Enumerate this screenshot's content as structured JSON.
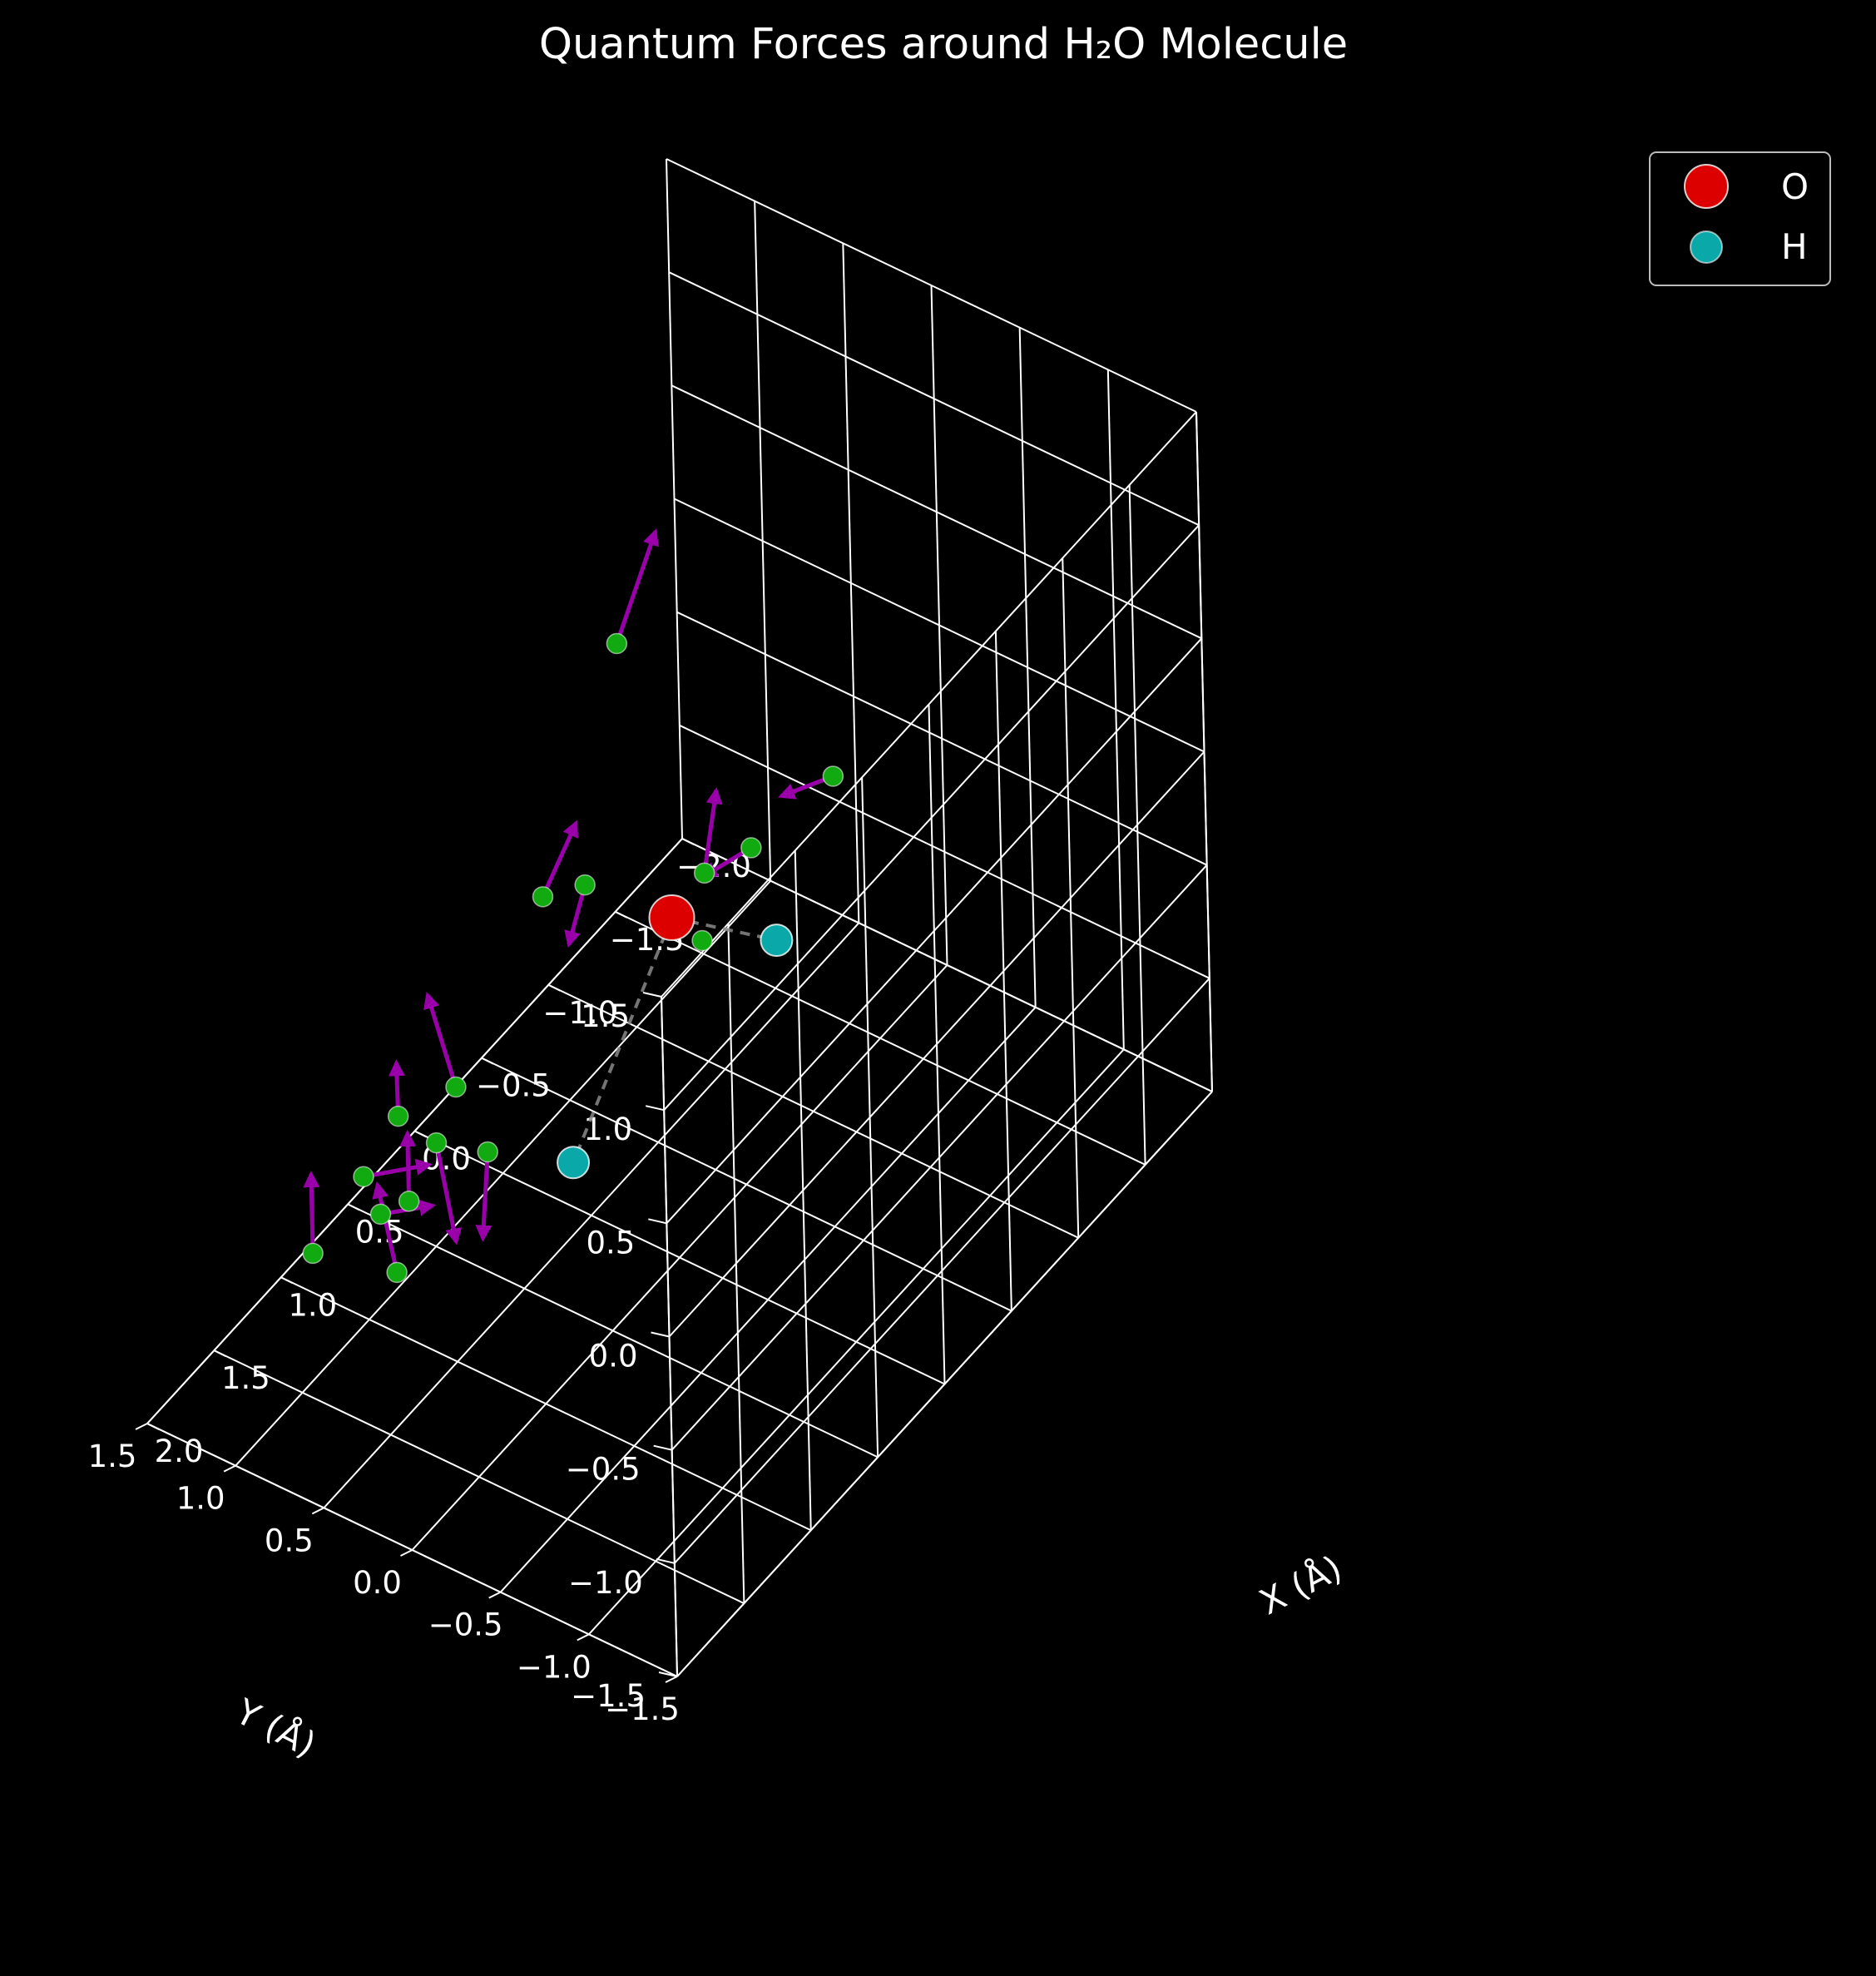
{
  "chart_data": {
    "type": "scatter",
    "title": "Quantum Forces around H₂O Molecule",
    "xlabel": "X (Å)",
    "ylabel": "Y (Å)",
    "zlabel": "",
    "xlim": [
      -2.0,
      2.0
    ],
    "ylim": [
      -1.5,
      1.5
    ],
    "zlim": [
      -1.5,
      1.5
    ],
    "x_ticks": [
      "−2.0",
      "−1.5",
      "−1.0",
      "−0.5",
      "0.0",
      "0.5",
      "1.0",
      "1.5",
      "2.0"
    ],
    "y_ticks": [
      "−1.5",
      "−1.0",
      "−0.5",
      "0.0",
      "0.5",
      "1.0",
      "1.5"
    ],
    "z_ticks": [
      "−1.5",
      "−1.0",
      "−0.5",
      "0.0",
      "0.5",
      "1.0",
      "1.5"
    ],
    "grid": true,
    "background": "#000000",
    "legend": {
      "placement": "top-right",
      "entries": [
        {
          "label": "O",
          "color": "#dd0000"
        },
        {
          "label": "H",
          "color": "#0aa8a8"
        }
      ]
    },
    "atoms": [
      {
        "element": "O",
        "x": 0.0,
        "y": 0.0,
        "z": 0.0,
        "color": "#dd0000"
      },
      {
        "element": "H",
        "x": 0.76,
        "y": 0.0,
        "z": -0.59,
        "color": "#0aa8a8"
      },
      {
        "element": "H",
        "x": -0.76,
        "y": 0.0,
        "z": -0.59,
        "color": "#0aa8a8"
      }
    ],
    "bond_style": "dashed",
    "bond_color": "#888888",
    "force_points": [
      {
        "x": 0.1,
        "y": 0.2,
        "z": 1.2,
        "fx": -0.3,
        "fy": 0.0,
        "fz": 0.3
      },
      {
        "x": 0.5,
        "y": 0.1,
        "z": 0.43,
        "fx": 0.0,
        "fy": 0.1,
        "fz": -0.3
      },
      {
        "x": 0.3,
        "y": 0.5,
        "z": 0.1,
        "fx": 0.0,
        "fy": -0.2,
        "fz": 0.4
      },
      {
        "x": -0.5,
        "y": 0.2,
        "z": -0.2,
        "fx": -0.1,
        "fy": 0.0,
        "fz": 0.3
      },
      {
        "x": 1.03,
        "y": 0.45,
        "z": -0.25,
        "fx": 0.0,
        "fy": 0.15,
        "fz": 0.35
      },
      {
        "x": 1.0,
        "y": 0.3,
        "z": -0.5,
        "fx": 0.05,
        "fy": 0.0,
        "fz": -0.35
      },
      {
        "x": 1.5,
        "y": 0.2,
        "z": -0.1,
        "fx": 0.0,
        "fy": -0.1,
        "fz": -0.4
      },
      {
        "x": 1.2,
        "y": 0.6,
        "z": -0.7,
        "fx": 0.0,
        "fy": 0.0,
        "fz": 0.3
      },
      {
        "x": 1.3,
        "y": 0.6,
        "z": -0.95,
        "fx": 0.0,
        "fy": 0.1,
        "fz": 0.35
      },
      {
        "x": 1.4,
        "y": 0.7,
        "z": -0.5,
        "fx": -0.1,
        "fy": -0.3,
        "fz": 0.1
      },
      {
        "x": 1.4,
        "y": 1.0,
        "z": -0.95,
        "fx": 0.0,
        "fy": 0.0,
        "fz": 0.35
      },
      {
        "x": 0.9,
        "y": 1.0,
        "z": -1.1,
        "fx": 0.0,
        "fy": -0.3,
        "fz": 0.15
      },
      {
        "x": 0.5,
        "y": 1.2,
        "z": -1.0,
        "fx": -0.25,
        "fy": 0.2,
        "fz": 0.0
      },
      {
        "x": -0.6,
        "y": 0.3,
        "z": -0.6,
        "fx": 0.0,
        "fy": 0.0,
        "fz": 0.0
      },
      {
        "x": -1.1,
        "y": 0.4,
        "z": -0.55,
        "fx": 0.35,
        "fy": 0.0,
        "fz": 0.1
      },
      {
        "x": -1.2,
        "y": 0.0,
        "z": -0.15,
        "fx": 0.0,
        "fy": 0.3,
        "fz": -0.2
      }
    ],
    "force_point_color": "#11aa11",
    "force_arrow_color": "#9900aa"
  }
}
